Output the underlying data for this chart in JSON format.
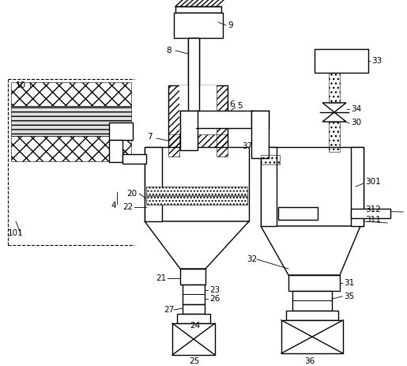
{
  "bg": "#ffffff",
  "lc": "#000000",
  "figsize": [
    5.15,
    4.63
  ],
  "dpi": 100
}
